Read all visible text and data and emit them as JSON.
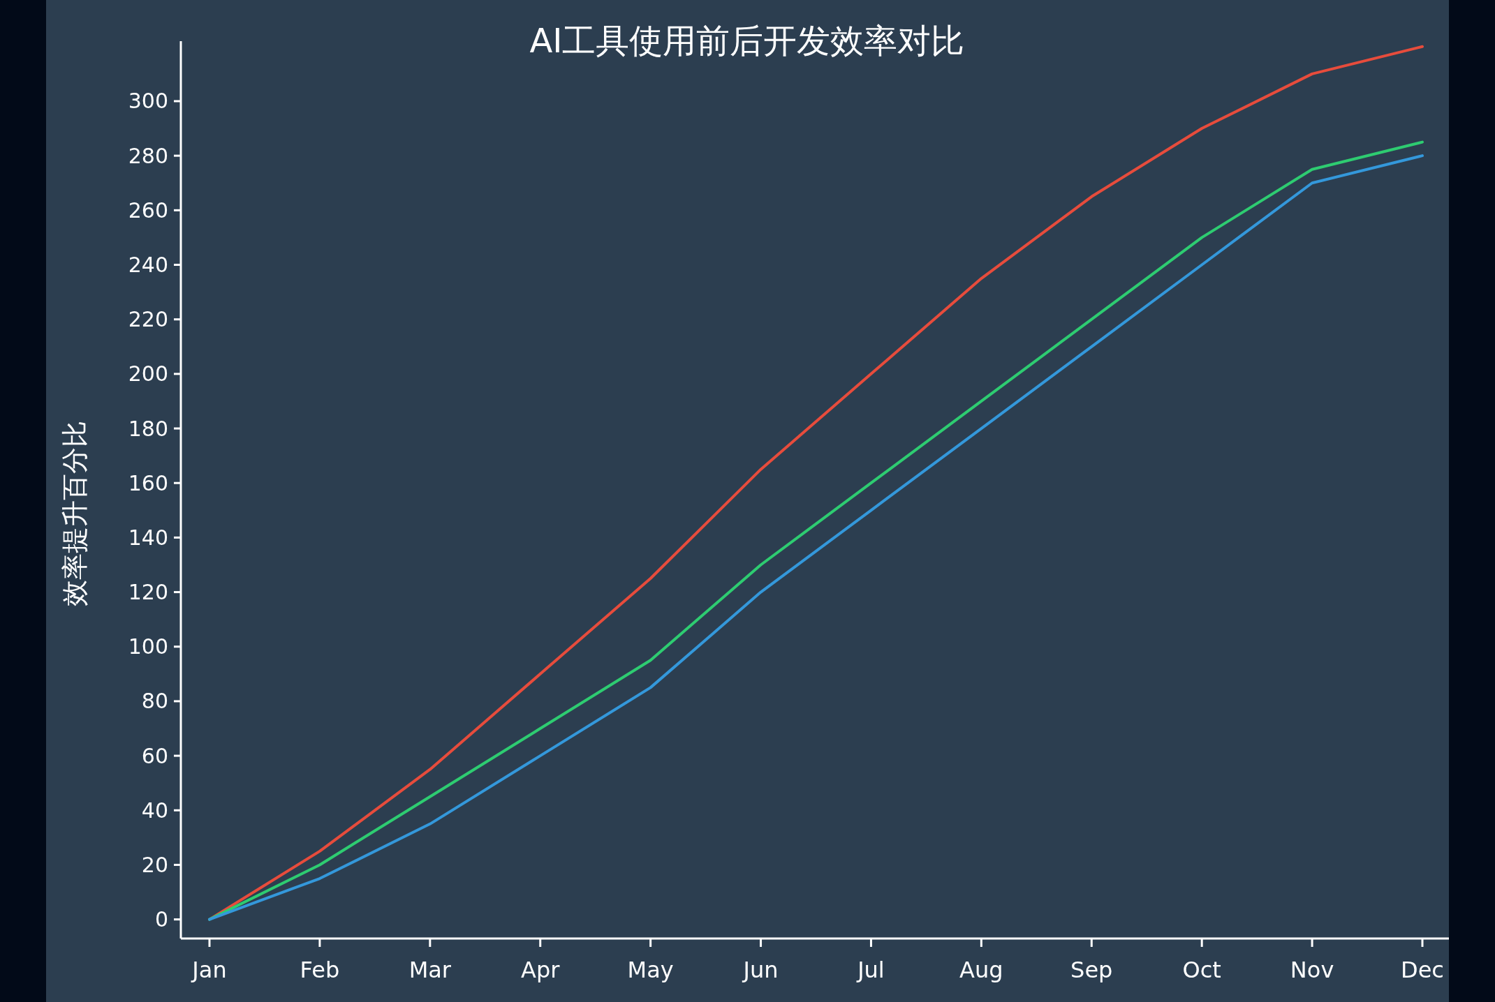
{
  "chart_data": {
    "type": "line",
    "title": "AI工具使用前后开发效率对比",
    "ylabel": "效率提升百分比",
    "categories": [
      "Jan",
      "Feb",
      "Mar",
      "Apr",
      "May",
      "Jun",
      "Jul",
      "Aug",
      "Sep",
      "Oct",
      "Nov",
      "Dec"
    ],
    "series": [
      {
        "color": "#e74c3c",
        "values": [
          0,
          25,
          55,
          90,
          125,
          165,
          200,
          235,
          265,
          290,
          310,
          320
        ]
      },
      {
        "color": "#2ecc71",
        "values": [
          0,
          20,
          45,
          70,
          95,
          130,
          160,
          190,
          220,
          250,
          275,
          285
        ]
      },
      {
        "color": "#3498db",
        "values": [
          0,
          15,
          35,
          60,
          85,
          120,
          150,
          180,
          210,
          240,
          270,
          280
        ]
      }
    ],
    "ylim": [
      -7,
      322
    ],
    "yticks": [
      0,
      20,
      40,
      60,
      80,
      100,
      120,
      140,
      160,
      180,
      200,
      220,
      240,
      260,
      280,
      300
    ],
    "grid": false
  }
}
